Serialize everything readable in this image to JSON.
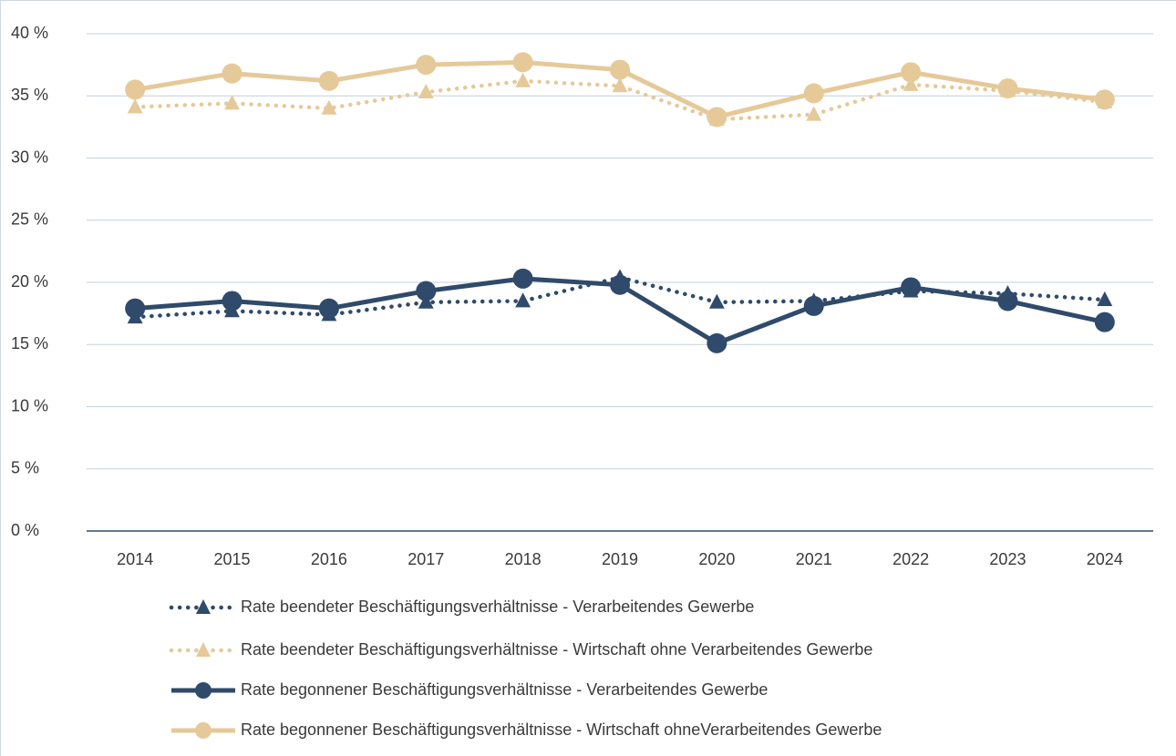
{
  "chart_data": {
    "type": "line",
    "categories": [
      "2014",
      "2015",
      "2016",
      "2017",
      "2018",
      "2019",
      "2020",
      "2021",
      "2022",
      "2023",
      "2024"
    ],
    "series": [
      {
        "name": "Rate beendeter Beschäftigungsverhältnisse - Verarbeitendes Gewerbe",
        "color": "#2f4a6a",
        "line": "dotted",
        "marker": "triangle",
        "values": [
          17.2,
          17.7,
          17.4,
          18.4,
          18.5,
          20.4,
          18.4,
          18.5,
          19.3,
          19.1,
          18.6
        ]
      },
      {
        "name": "Rate beendeter Beschäftigungsverhältnisse - Wirtschaft ohne Verarbeitendes Gewerbe",
        "color": "#e6c999",
        "line": "dotted",
        "marker": "triangle",
        "values": [
          34.1,
          34.4,
          34.0,
          35.3,
          36.2,
          35.8,
          33.1,
          33.5,
          35.9,
          35.4,
          34.5
        ]
      },
      {
        "name": "Rate begonnener Beschäftigungsverhältnisse - Verarbeitendes Gewerbe",
        "color": "#2f4a6a",
        "line": "solid",
        "marker": "circle",
        "values": [
          17.9,
          18.5,
          17.9,
          19.3,
          20.3,
          19.8,
          15.1,
          18.1,
          19.6,
          18.5,
          16.8
        ]
      },
      {
        "name": "Rate begonnener Beschäftigungsverhältnisse - Wirtschaft ohneVerarbeitendes Gewerbe",
        "color": "#e6c999",
        "line": "solid",
        "marker": "circle",
        "values": [
          35.5,
          36.8,
          36.2,
          37.5,
          37.7,
          37.1,
          33.3,
          35.2,
          36.9,
          35.6,
          34.7
        ]
      }
    ],
    "ylim": [
      0,
      40
    ],
    "yticks": [
      {
        "value": 0,
        "label": "0 %"
      },
      {
        "value": 5,
        "label": "5 %"
      },
      {
        "value": 10,
        "label": "10 %"
      },
      {
        "value": 15,
        "label": "15 %"
      },
      {
        "value": 20,
        "label": "20 %"
      },
      {
        "value": 25,
        "label": "25 %"
      },
      {
        "value": 30,
        "label": "30 %"
      },
      {
        "value": 35,
        "label": "35 %"
      },
      {
        "value": 40,
        "label": "40 %"
      }
    ],
    "grid": true,
    "legend": "bottom"
  }
}
